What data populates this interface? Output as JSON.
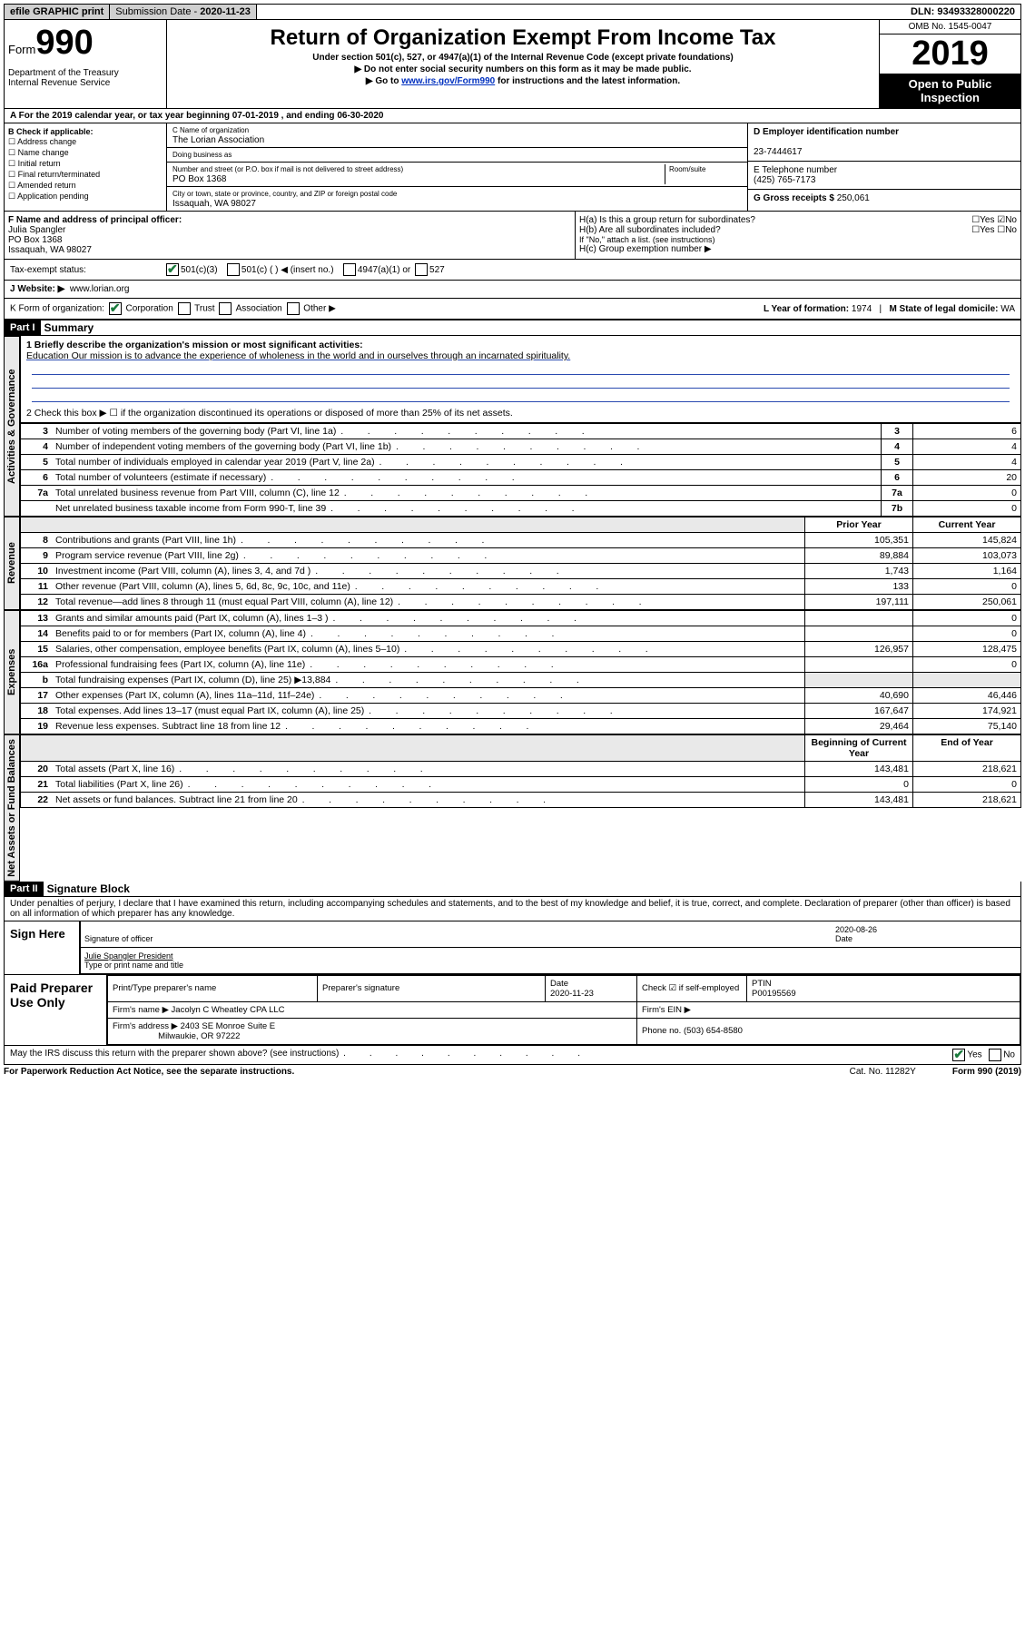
{
  "topbar": {
    "efile": "efile GRAPHIC print",
    "submission_label": "Submission Date - ",
    "submission_date": "2020-11-23",
    "dln_label": "DLN: ",
    "dln": "93493328000220"
  },
  "header": {
    "form_label": "Form",
    "form_num": "990",
    "dept": "Department of the Treasury\nInternal Revenue Service",
    "title": "Return of Organization Exempt From Income Tax",
    "subtitle": "Under section 501(c), 527, or 4947(a)(1) of the Internal Revenue Code (except private foundations)",
    "arrow1": "▶ Do not enter social security numbers on this form as it may be made public.",
    "arrow2_pre": "▶ Go to ",
    "arrow2_link": "www.irs.gov/Form990",
    "arrow2_post": " for instructions and the latest information.",
    "omb": "OMB No. 1545-0047",
    "year": "2019",
    "open": "Open to Public Inspection"
  },
  "period": "A   For the 2019 calendar year, or tax year beginning 07-01-2019    , and ending 06-30-2020",
  "boxB": {
    "label": "B Check if applicable:",
    "opts": [
      "Address change",
      "Name change",
      "Initial return",
      "Final return/terminated",
      "Amended return",
      "Application pending"
    ]
  },
  "boxC": {
    "name_label": "C Name of organization",
    "name": "The Lorian Association",
    "dba_label": "Doing business as",
    "addr_label": "Number and street (or P.O. box if mail is not delivered to street address)",
    "room_label": "Room/suite",
    "addr": "PO Box 1368",
    "city_label": "City or town, state or province, country, and ZIP or foreign postal code",
    "city": "Issaquah, WA  98027"
  },
  "boxD": {
    "label": "D Employer identification number",
    "ein": "23-7444617"
  },
  "boxE": {
    "label": "E Telephone number",
    "phone": "(425) 765-7173"
  },
  "boxG": {
    "label": "G Gross receipts $ ",
    "val": "250,061"
  },
  "boxF": {
    "label": "F  Name and address of principal officer:",
    "name": "Julia Spangler",
    "addr1": "PO Box 1368",
    "addr2": "Issaquah, WA  98027"
  },
  "boxH": {
    "ha": "H(a)  Is this a group return for subordinates?",
    "hb": "H(b)  Are all subordinates included?",
    "hb_note": "If \"No,\" attach a list. (see instructions)",
    "hc": "H(c)  Group exemption number ▶"
  },
  "taxstatus": {
    "label": "Tax-exempt status:",
    "c3": "501(c)(3)",
    "c": "501(c) (   ) ◀ (insert no.)",
    "a1": "4947(a)(1) or",
    "s527": "527"
  },
  "website": {
    "label": "J   Website: ▶",
    "val": "www.lorian.org"
  },
  "korg": {
    "label": "K Form of organization:",
    "corp": "Corporation",
    "trust": "Trust",
    "assoc": "Association",
    "other": "Other ▶",
    "L": "L Year of formation: ",
    "Lval": "1974",
    "M": "M State of legal domicile: ",
    "Mval": "WA"
  },
  "part1": {
    "bar": "Part I",
    "title": "Summary",
    "l1_label": "1  Briefly describe the organization's mission or most significant activities:",
    "l1_text": "Education Our mission is to advance the experience of wholeness in the world and in ourselves through an incarnated spirituality.",
    "l2": "2    Check this box ▶ ☐  if the organization discontinued its operations or disposed of more than 25% of its net assets.",
    "rows_ag": [
      {
        "n": "3",
        "d": "Number of voting members of the governing body (Part VI, line 1a)",
        "b": "3",
        "v": "6"
      },
      {
        "n": "4",
        "d": "Number of independent voting members of the governing body (Part VI, line 1b)",
        "b": "4",
        "v": "4"
      },
      {
        "n": "5",
        "d": "Total number of individuals employed in calendar year 2019 (Part V, line 2a)",
        "b": "5",
        "v": "4"
      },
      {
        "n": "6",
        "d": "Total number of volunteers (estimate if necessary)",
        "b": "6",
        "v": "20"
      },
      {
        "n": "7a",
        "d": "Total unrelated business revenue from Part VIII, column (C), line 12",
        "b": "7a",
        "v": "0"
      },
      {
        "n": "",
        "d": "Net unrelated business taxable income from Form 990-T, line 39",
        "b": "7b",
        "v": "0"
      }
    ],
    "hdr_prior": "Prior Year",
    "hdr_curr": "Current Year",
    "rows_rev": [
      {
        "n": "8",
        "d": "Contributions and grants (Part VIII, line 1h)",
        "p": "105,351",
        "c": "145,824"
      },
      {
        "n": "9",
        "d": "Program service revenue (Part VIII, line 2g)",
        "p": "89,884",
        "c": "103,073"
      },
      {
        "n": "10",
        "d": "Investment income (Part VIII, column (A), lines 3, 4, and 7d )",
        "p": "1,743",
        "c": "1,164"
      },
      {
        "n": "11",
        "d": "Other revenue (Part VIII, column (A), lines 5, 6d, 8c, 9c, 10c, and 11e)",
        "p": "133",
        "c": "0"
      },
      {
        "n": "12",
        "d": "Total revenue—add lines 8 through 11 (must equal Part VIII, column (A), line 12)",
        "p": "197,111",
        "c": "250,061"
      }
    ],
    "rows_exp": [
      {
        "n": "13",
        "d": "Grants and similar amounts paid (Part IX, column (A), lines 1–3 )",
        "p": "",
        "c": "0"
      },
      {
        "n": "14",
        "d": "Benefits paid to or for members (Part IX, column (A), line 4)",
        "p": "",
        "c": "0"
      },
      {
        "n": "15",
        "d": "Salaries, other compensation, employee benefits (Part IX, column (A), lines 5–10)",
        "p": "126,957",
        "c": "128,475"
      },
      {
        "n": "16a",
        "d": "Professional fundraising fees (Part IX, column (A), line 11e)",
        "p": "",
        "c": "0"
      },
      {
        "n": "b",
        "d": "Total fundraising expenses (Part IX, column (D), line 25) ▶13,884",
        "p": "GRAY",
        "c": "GRAY"
      },
      {
        "n": "17",
        "d": "Other expenses (Part IX, column (A), lines 11a–11d, 11f–24e)",
        "p": "40,690",
        "c": "46,446"
      },
      {
        "n": "18",
        "d": "Total expenses. Add lines 13–17 (must equal Part IX, column (A), line 25)",
        "p": "167,647",
        "c": "174,921"
      },
      {
        "n": "19",
        "d": "Revenue less expenses. Subtract line 18 from line 12",
        "p": "29,464",
        "c": "75,140"
      }
    ],
    "hdr_beg": "Beginning of Current Year",
    "hdr_end": "End of Year",
    "rows_na": [
      {
        "n": "20",
        "d": "Total assets (Part X, line 16)",
        "p": "143,481",
        "c": "218,621"
      },
      {
        "n": "21",
        "d": "Total liabilities (Part X, line 26)",
        "p": "0",
        "c": "0"
      },
      {
        "n": "22",
        "d": "Net assets or fund balances. Subtract line 21 from line 20",
        "p": "143,481",
        "c": "218,621"
      }
    ]
  },
  "vtabs": {
    "ag": "Activities & Governance",
    "rev": "Revenue",
    "exp": "Expenses",
    "na": "Net Assets or Fund Balances"
  },
  "part2": {
    "bar": "Part II",
    "title": "Signature Block",
    "decl": "Under penalties of perjury, I declare that I have examined this return, including accompanying schedules and statements, and to the best of my knowledge and belief, it is true, correct, and complete. Declaration of preparer (other than officer) is based on all information of which preparer has any knowledge.",
    "sign_here": "Sign Here",
    "sig_officer": "Signature of officer",
    "sig_date": "2020-08-26",
    "date_label": "Date",
    "officer_name": "Julie Spangler  President",
    "type_label": "Type or print name and title",
    "paid": "Paid Preparer Use Only",
    "h_name": "Print/Type preparer's name",
    "h_sig": "Preparer's signature",
    "h_date": "Date",
    "date_v": "2020-11-23",
    "h_check": "Check ☑ if self-employed",
    "h_ptin": "PTIN",
    "ptin_v": "P00195569",
    "firm_name_l": "Firm's name    ▶",
    "firm_name": "Jacolyn C Wheatley CPA LLC",
    "firm_ein_l": "Firm's EIN ▶",
    "firm_addr_l": "Firm's address ▶",
    "firm_addr1": "2403 SE Monroe Suite E",
    "firm_addr2": "Milwaukie, OR  97222",
    "phone_l": "Phone no. ",
    "phone": "(503) 654-8580",
    "discuss": "May the IRS discuss this return with the preparer shown above? (see instructions)",
    "yes": "Yes",
    "no": "No"
  },
  "footer": {
    "left": "For Paperwork Reduction Act Notice, see the separate instructions.",
    "mid": "Cat. No. 11282Y",
    "right": "Form 990 (2019)"
  }
}
